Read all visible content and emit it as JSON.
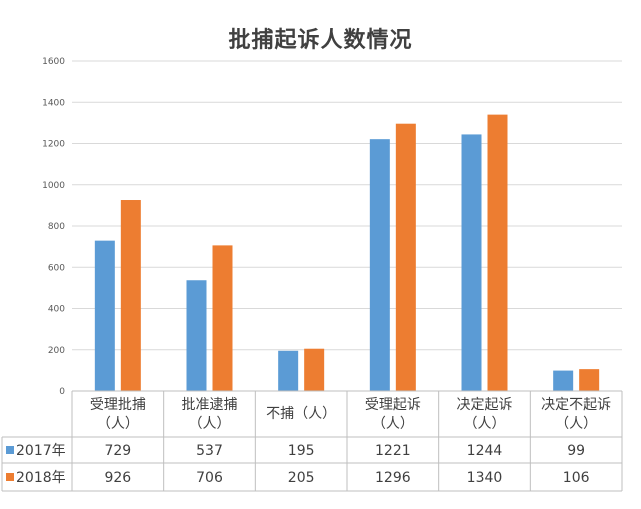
{
  "chart_data": {
    "type": "bar",
    "title": "批捕起诉人数情况",
    "categories": [
      [
        "受理批捕",
        "（人）"
      ],
      [
        "批准逮捕",
        "（人）"
      ],
      [
        "不捕（人）"
      ],
      [
        "受理起诉",
        "（人）"
      ],
      [
        "决定起诉",
        "（人）"
      ],
      [
        "决定不起诉",
        "（人）"
      ]
    ],
    "series": [
      {
        "name": "2017年",
        "color": "#5B9BD5",
        "values": [
          729,
          537,
          195,
          1221,
          1244,
          99
        ]
      },
      {
        "name": "2018年",
        "color": "#ED7D31",
        "values": [
          926,
          706,
          205,
          1296,
          1340,
          106
        ]
      }
    ],
    "ylim": [
      0,
      1600
    ],
    "yticks": [
      0,
      200,
      400,
      600,
      800,
      1000,
      1200,
      1400,
      1600
    ],
    "grid": true,
    "legend_placement": "data-table"
  }
}
